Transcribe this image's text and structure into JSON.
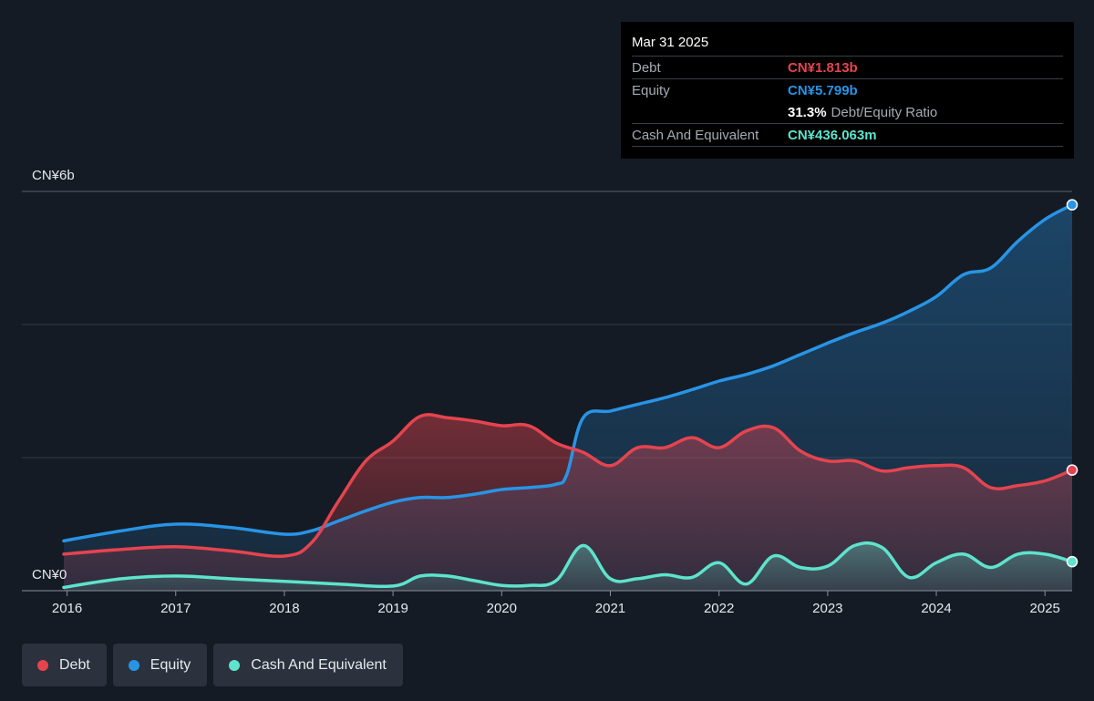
{
  "tooltip": {
    "date": "Mar 31 2025",
    "debt_label": "Debt",
    "debt_value": "CN¥1.813b",
    "equity_label": "Equity",
    "equity_value": "CN¥5.799b",
    "ratio_value": "31.3%",
    "ratio_label": "Debt/Equity Ratio",
    "cash_label": "Cash And Equivalent",
    "cash_value": "CN¥436.063m"
  },
  "legend": [
    {
      "label": "Debt",
      "color": "#e5444f"
    },
    {
      "label": "Equity",
      "color": "#2894e6"
    },
    {
      "label": "Cash And Equivalent",
      "color": "#5ee3cc"
    }
  ],
  "chart_data": {
    "type": "area",
    "ylim": [
      0,
      6
    ],
    "y_unit": "CN¥ billions",
    "y_tick_labels": [
      {
        "value": 6,
        "label": "CN¥6b"
      },
      {
        "value": 0,
        "label": "CN¥0"
      }
    ],
    "y_gridlines": [
      0,
      2,
      4,
      6
    ],
    "xlim": [
      2015.97,
      2025.25
    ],
    "x_ticks": [
      2016,
      2017,
      2018,
      2019,
      2020,
      2021,
      2022,
      2023,
      2024,
      2025
    ],
    "x_tick_labels": [
      "2016",
      "2017",
      "2018",
      "2019",
      "2020",
      "2021",
      "2022",
      "2023",
      "2024",
      "2025"
    ],
    "series": [
      {
        "name": "Debt",
        "color": "#e5444f",
        "x": [
          2015.97,
          2016.5,
          2017.0,
          2017.5,
          2018.0,
          2018.25,
          2018.5,
          2018.75,
          2019.0,
          2019.25,
          2019.5,
          2019.75,
          2020.0,
          2020.25,
          2020.5,
          2020.75,
          2021.0,
          2021.25,
          2021.5,
          2021.75,
          2022.0,
          2022.25,
          2022.5,
          2022.75,
          2023.0,
          2023.25,
          2023.5,
          2023.75,
          2024.0,
          2024.25,
          2024.5,
          2024.75,
          2025.0,
          2025.25
        ],
        "y": [
          0.55,
          0.62,
          0.66,
          0.6,
          0.52,
          0.72,
          1.35,
          1.95,
          2.25,
          2.62,
          2.6,
          2.55,
          2.48,
          2.48,
          2.22,
          2.08,
          1.88,
          2.15,
          2.15,
          2.3,
          2.15,
          2.4,
          2.45,
          2.1,
          1.95,
          1.95,
          1.8,
          1.85,
          1.88,
          1.85,
          1.55,
          1.58,
          1.65,
          1.813
        ]
      },
      {
        "name": "Equity",
        "color": "#2894e6",
        "x": [
          2015.97,
          2016.5,
          2017.0,
          2017.5,
          2018.0,
          2018.25,
          2018.5,
          2018.75,
          2019.0,
          2019.25,
          2019.5,
          2019.75,
          2020.0,
          2020.25,
          2020.5,
          2020.6,
          2020.75,
          2021.0,
          2021.25,
          2021.5,
          2021.75,
          2022.0,
          2022.25,
          2022.5,
          2022.75,
          2023.0,
          2023.25,
          2023.5,
          2023.75,
          2024.0,
          2024.25,
          2024.5,
          2024.75,
          2025.0,
          2025.25
        ],
        "y": [
          0.75,
          0.9,
          1.0,
          0.95,
          0.85,
          0.9,
          1.05,
          1.2,
          1.33,
          1.4,
          1.4,
          1.45,
          1.52,
          1.55,
          1.6,
          1.75,
          2.6,
          2.7,
          2.8,
          2.9,
          3.02,
          3.15,
          3.25,
          3.38,
          3.55,
          3.72,
          3.88,
          4.02,
          4.2,
          4.42,
          4.75,
          4.85,
          5.25,
          5.58,
          5.799
        ]
      },
      {
        "name": "Cash And Equivalent",
        "color": "#5ee3cc",
        "x": [
          2015.97,
          2016.5,
          2017.0,
          2017.5,
          2018.0,
          2018.5,
          2019.0,
          2019.25,
          2019.5,
          2019.75,
          2020.0,
          2020.25,
          2020.5,
          2020.75,
          2021.0,
          2021.25,
          2021.5,
          2021.75,
          2022.0,
          2022.25,
          2022.5,
          2022.75,
          2023.0,
          2023.25,
          2023.5,
          2023.75,
          2024.0,
          2024.25,
          2024.5,
          2024.75,
          2025.0,
          2025.25
        ],
        "y": [
          0.05,
          0.18,
          0.22,
          0.18,
          0.14,
          0.1,
          0.07,
          0.22,
          0.22,
          0.15,
          0.08,
          0.08,
          0.15,
          0.68,
          0.18,
          0.18,
          0.24,
          0.2,
          0.42,
          0.1,
          0.52,
          0.35,
          0.37,
          0.68,
          0.65,
          0.2,
          0.42,
          0.55,
          0.35,
          0.55,
          0.55,
          0.436
        ]
      }
    ]
  }
}
